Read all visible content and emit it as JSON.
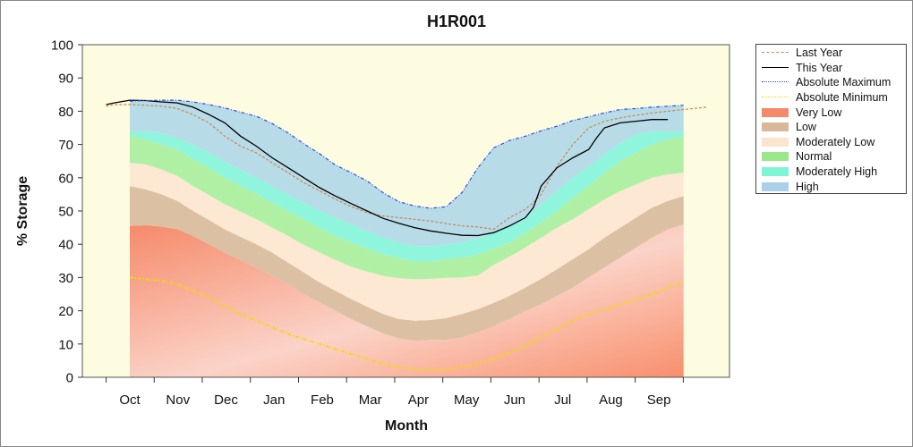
{
  "chart_data": {
    "type": "area",
    "title": "H1R001",
    "xlabel": "Month",
    "ylabel": "% Storage",
    "ylim": [
      0,
      100
    ],
    "yticks": [
      0,
      10,
      20,
      30,
      40,
      50,
      60,
      70,
      80,
      90,
      100
    ],
    "categories": [
      "Oct",
      "Nov",
      "Dec",
      "Jan",
      "Feb",
      "Mar",
      "Apr",
      "May",
      "Jun",
      "Jul",
      "Aug",
      "Sep"
    ],
    "x_days": [
      0,
      15,
      30,
      45,
      60,
      75,
      90,
      105,
      120,
      135,
      150,
      165,
      180,
      195,
      210,
      225,
      240,
      255,
      270,
      285,
      300,
      315,
      330,
      345,
      360,
      365
    ],
    "bands": [
      {
        "name": "Very Low",
        "upper": [
          45.5,
          45.7,
          45.3,
          44.6,
          42.5,
          40,
          37.5,
          35.2,
          33,
          30.5,
          28,
          25,
          22.5,
          20,
          17.5,
          15.3,
          13.2,
          11.7,
          11,
          11.2,
          11.3,
          12,
          13.5,
          15.4,
          17.5,
          19.9,
          22,
          24.5,
          27,
          30,
          33,
          36,
          39,
          42,
          44.5,
          46
        ]
      },
      {
        "name": "Low",
        "upper": [
          57.5,
          56.5,
          55,
          53,
          50,
          47.3,
          44.5,
          42.2,
          40,
          37.5,
          34.5,
          31.5,
          28.5,
          26,
          23.5,
          21.2,
          19,
          17.5,
          17,
          17.2,
          17.8,
          19,
          20.5,
          22.4,
          24.5,
          27,
          29.6,
          32.5,
          35.5,
          38.5,
          42,
          45,
          48,
          51,
          53,
          54.5
        ]
      },
      {
        "name": "Moderately Low",
        "upper": [
          64.5,
          64,
          62.5,
          60.5,
          57.5,
          54.8,
          52,
          49.8,
          47.5,
          45,
          42.5,
          39.8,
          37.5,
          35.3,
          33.2,
          31.8,
          30.5,
          29.8,
          29.5,
          29.6,
          29.9,
          30,
          30.6,
          33.8,
          36.3,
          39,
          42,
          45,
          47.5,
          50.5,
          53.5,
          56,
          58,
          60,
          61,
          61.5
        ]
      },
      {
        "name": "Normal",
        "upper": [
          72.5,
          71.5,
          70,
          68.5,
          65.5,
          63,
          60,
          57.6,
          55.2,
          52.5,
          50,
          47.5,
          44.8,
          42.5,
          40.5,
          38.7,
          37,
          35.8,
          34.8,
          34.8,
          35.5,
          36,
          37,
          38.7,
          40.5,
          43.5,
          46.5,
          50,
          54,
          57.5,
          61.5,
          65,
          67.5,
          70,
          71.5,
          72.5
        ]
      },
      {
        "name": "Moderately High",
        "upper": [
          74,
          74,
          73.5,
          72,
          70,
          67.5,
          65,
          62.5,
          60,
          57.5,
          55,
          52.5,
          50.2,
          48,
          46,
          44,
          42.1,
          40.6,
          39.5,
          39.5,
          40,
          40.5,
          41.8,
          43.5,
          45.5,
          48.5,
          52,
          56,
          60,
          63.5,
          67,
          70.5,
          73,
          74,
          74,
          74
        ]
      },
      {
        "name": "High",
        "upper": [
          83,
          83.2,
          83.3,
          83.3,
          82.8,
          82,
          81,
          79.7,
          78.5,
          76.3,
          73.5,
          70.2,
          67.2,
          63.8,
          61.5,
          59,
          55.5,
          52.8,
          51.5,
          50.8,
          51.3,
          55.6,
          63,
          69,
          71.2,
          72.5,
          74.1,
          75.5,
          77.2,
          78.3,
          79.5,
          80.5,
          80.8,
          81.2,
          81.5,
          81.8
        ]
      }
    ],
    "band_x": [
      0,
      10,
      20,
      30,
      40,
      50,
      60,
      70,
      80,
      90,
      100,
      110,
      120,
      130,
      140,
      150,
      160,
      170,
      180,
      190,
      200,
      210,
      220,
      230,
      240,
      250,
      260,
      270,
      280,
      290,
      300,
      310,
      320,
      330,
      340,
      350
    ],
    "series": [
      {
        "name": "Last Year",
        "x": [
          -15,
          -10,
          0,
          10,
          20,
          30,
          40,
          50,
          60,
          70,
          80,
          90,
          100,
          110,
          120,
          130,
          140,
          150,
          160,
          170,
          180,
          190,
          200,
          210,
          220,
          230,
          240,
          250,
          255,
          260,
          270,
          280,
          290,
          300,
          310,
          320,
          330,
          340,
          350,
          360,
          365
        ],
        "values": [
          81.5,
          82,
          82,
          81.8,
          81.5,
          80.8,
          79,
          76.5,
          72.5,
          69.5,
          67.5,
          64.5,
          61.5,
          58.5,
          56,
          53.5,
          51.3,
          49.5,
          48.5,
          48,
          47.5,
          47,
          46.2,
          45.5,
          45.2,
          44.5,
          48,
          50.5,
          52.5,
          55,
          63.5,
          70,
          75,
          77,
          78,
          78.8,
          79.5,
          80,
          80.5,
          81,
          81.3
        ]
      },
      {
        "name": "This Year",
        "x": [
          -15,
          -10,
          0,
          10,
          20,
          30,
          40,
          50,
          60,
          70,
          80,
          90,
          100,
          110,
          120,
          130,
          140,
          150,
          160,
          170,
          180,
          190,
          200,
          210,
          220,
          230,
          240,
          250,
          255,
          260,
          270,
          280,
          290,
          295,
          300,
          310,
          320,
          330,
          340
        ],
        "values": [
          82,
          82.5,
          83.3,
          83.2,
          82.8,
          82.5,
          81.2,
          79,
          76.5,
          72.5,
          69.5,
          66,
          63,
          60,
          57,
          54.5,
          52.2,
          50,
          47.8,
          46.3,
          45,
          44,
          43.3,
          42.7,
          42.6,
          43.5,
          45.5,
          48,
          51,
          57.5,
          63,
          66,
          68.5,
          72,
          75,
          76.5,
          77,
          77.5,
          77.5
        ]
      },
      {
        "name": "Absolute Maximum",
        "x": [
          0,
          10,
          20,
          30,
          40,
          50,
          60,
          70,
          80,
          90,
          100,
          110,
          120,
          130,
          140,
          150,
          160,
          170,
          180,
          190,
          200,
          210,
          220,
          230,
          240,
          250,
          260,
          270,
          280,
          290,
          300,
          310,
          320,
          330,
          340,
          350
        ],
        "values": [
          83,
          83.2,
          83.3,
          83.3,
          82.8,
          82,
          81,
          79.7,
          78.5,
          76.3,
          73.5,
          70.2,
          67.2,
          63.8,
          61.5,
          59,
          55.5,
          52.8,
          51.5,
          50.8,
          51.3,
          55.6,
          63,
          69,
          71.2,
          72.5,
          74.1,
          75.5,
          77.2,
          78.3,
          79.5,
          80.5,
          80.8,
          81.2,
          81.5,
          81.8
        ]
      },
      {
        "name": "Absolute Minimum",
        "x": [
          0,
          10,
          20,
          30,
          40,
          50,
          60,
          70,
          80,
          90,
          100,
          110,
          120,
          130,
          140,
          150,
          160,
          170,
          180,
          190,
          200,
          210,
          220,
          230,
          240,
          250,
          260,
          270,
          280,
          290,
          300,
          310,
          320,
          330,
          340,
          350
        ],
        "values": [
          30,
          29.5,
          29,
          28,
          26,
          24,
          21.5,
          19,
          17,
          15,
          13,
          11.5,
          10,
          8.5,
          7,
          5.5,
          4,
          3,
          2.5,
          2.3,
          2.5,
          3,
          4,
          5.5,
          7.5,
          9.5,
          12,
          14.5,
          17,
          19,
          20.5,
          22,
          23.5,
          25,
          27,
          28.5
        ]
      }
    ],
    "legend": {
      "placement": "right",
      "items": [
        {
          "label": "Last Year",
          "kind": "line",
          "color": "#c8864e",
          "style": "dashed"
        },
        {
          "label": "This Year",
          "kind": "line",
          "color": "#000000",
          "style": "solid"
        },
        {
          "label": "Absolute Maximum",
          "kind": "line",
          "color": "#2b4fe0",
          "style": "dashdot"
        },
        {
          "label": "Absolute Minimum",
          "kind": "line",
          "color": "#f0dc00",
          "style": "dashdot"
        },
        {
          "label": "Very Low",
          "kind": "fill",
          "color": "#f58a6a"
        },
        {
          "label": "Low",
          "kind": "fill",
          "color": "#d9b89a"
        },
        {
          "label": "Moderately Low",
          "kind": "fill",
          "color": "#fde4cc"
        },
        {
          "label": "Normal",
          "kind": "fill",
          "color": "#99e88c"
        },
        {
          "label": "Moderately High",
          "kind": "fill",
          "color": "#7ef5d6"
        },
        {
          "label": "High",
          "kind": "fill",
          "color": "#a9d0e6"
        }
      ]
    },
    "colors": {
      "plot_background": "#fdfce0",
      "very_low": "#f58a6a",
      "low": "#dcc0a4",
      "moderately_low": "#fde8d4",
      "normal": "#b0f0a4",
      "moderately_high": "#8ff5dc",
      "high": "#b8dbe8",
      "last_year": "#c8864e",
      "this_year": "#000000",
      "abs_max": "#2b4fe0",
      "abs_min": "#f0dc00"
    },
    "grid": false
  }
}
